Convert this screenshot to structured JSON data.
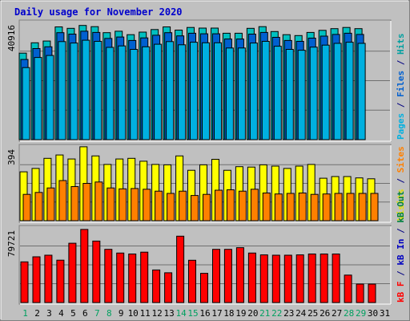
{
  "chart_data": {
    "type": "bar",
    "title": "Daily usage for November 2020",
    "x": [
      "1",
      "2",
      "3",
      "4",
      "5",
      "6",
      "7",
      "8",
      "9",
      "10",
      "11",
      "12",
      "13",
      "14",
      "15",
      "16",
      "17",
      "18",
      "19",
      "20",
      "21",
      "22",
      "23",
      "24",
      "25",
      "26",
      "27",
      "28",
      "29",
      "30",
      "31"
    ],
    "weekend_days": [
      "1",
      "7",
      "8",
      "14",
      "15",
      "21",
      "22",
      "28",
      "29"
    ],
    "panels": [
      {
        "name": "top",
        "max_label": "40916",
        "ymax": 40916,
        "right_label": [
          {
            "text": "Pages",
            "color": "#00B0E0"
          },
          {
            "text": " / ",
            "color": "#000080"
          },
          {
            "text": "Files",
            "color": "#0060D0"
          },
          {
            "text": " / ",
            "color": "#000080"
          },
          {
            "text": "Hits",
            "color": "#00A0A0"
          }
        ],
        "series": [
          {
            "name": "Hits",
            "color": "#00C0C0",
            "values": [
              30000,
              33600,
              34200,
              39100,
              38600,
              39600,
              39200,
              37100,
              37600,
              36400,
              37300,
              38200,
              39100,
              38000,
              38900,
              38700,
              38700,
              36900,
              36900,
              38600,
              39200,
              37500,
              36400,
              36100,
              37200,
              37900,
              38500,
              38900,
              38500,
              null,
              null
            ]
          },
          {
            "name": "Files",
            "color": "#0060D0",
            "values": [
              27800,
              31600,
              32200,
              37100,
              36600,
              37600,
              37200,
              35100,
              35600,
              34400,
              35300,
              36200,
              37100,
              36000,
              36900,
              36700,
              36700,
              34900,
              34900,
              36600,
              37200,
              35500,
              34400,
              34100,
              35200,
              35900,
              36500,
              36900,
              36500,
              null,
              null
            ]
          },
          {
            "name": "Pages",
            "color": "#00B0E0",
            "values": [
              25000,
              28500,
              29200,
              34000,
              33500,
              34500,
              34100,
              32000,
              32500,
              31300,
              32200,
              33100,
              34000,
              32900,
              33800,
              33600,
              33600,
              31800,
              31800,
              33500,
              34100,
              32400,
              31300,
              31000,
              32100,
              32800,
              33400,
              33800,
              33400,
              null,
              null
            ]
          }
        ]
      },
      {
        "name": "middle",
        "max_label": "394",
        "ymax": 394,
        "right_label": [
          {
            "text": "Visits",
            "color": "#E0E000"
          },
          {
            "text": " / ",
            "color": "#000080"
          },
          {
            "text": "Sites",
            "color": "#FF8000"
          }
        ],
        "series": [
          {
            "name": "Visits",
            "color": "#FFFF00",
            "values": [
              258,
              276,
              329,
              347,
              326,
              390,
              342,
              297,
              326,
              329,
              314,
              297,
              295,
              342,
              266,
              295,
              324,
              266,
              285,
              283,
              295,
              288,
              276,
              288,
              297,
              224,
              233,
              233,
              226,
              221,
              null
            ]
          },
          {
            "name": "Sites",
            "color": "#FF8000",
            "values": [
              139,
              149,
              173,
              212,
              180,
              197,
              204,
              173,
              168,
              170,
              166,
              156,
              144,
              156,
              133,
              139,
              161,
              163,
              156,
              166,
              146,
              141,
              144,
              146,
              139,
              141,
              144,
              144,
              144,
              144,
              null
            ]
          }
        ]
      },
      {
        "name": "bottom",
        "max_label": "79721",
        "ymax": 79721,
        "right_label": [
          {
            "text": "kB F",
            "color": "#FF0000"
          },
          {
            "text": " / ",
            "color": "#000080"
          },
          {
            "text": "kB In",
            "color": "#0000C0"
          },
          {
            "text": " / ",
            "color": "#000080"
          },
          {
            "text": "kB Out",
            "color": "#008040"
          }
        ],
        "series": [
          {
            "name": "kB F",
            "color": "#FF0000",
            "values": [
              43000,
              48300,
              50000,
              44800,
              62700,
              77300,
              65000,
              56200,
              52300,
              51300,
              53300,
              34400,
              31500,
              70100,
              44700,
              30900,
              56200,
              56200,
              58000,
              52300,
              50400,
              50000,
              50000,
              50400,
              51300,
              51300,
              51300,
              29000,
              19500,
              19500,
              null
            ]
          }
        ]
      }
    ]
  }
}
